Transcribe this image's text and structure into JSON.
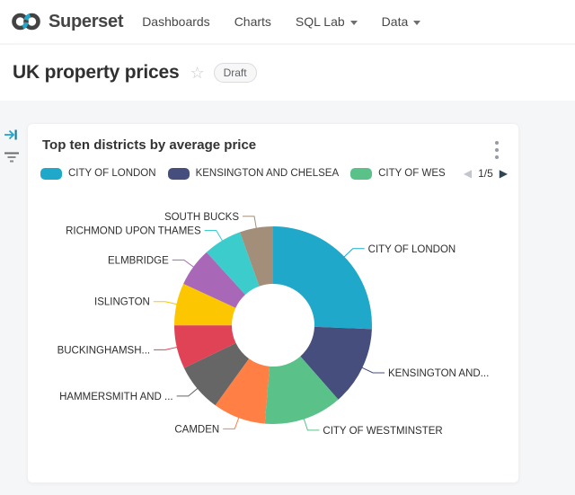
{
  "brand": {
    "name": "Superset",
    "logo_dark": "#434343",
    "logo_accent": "#20A7C9"
  },
  "nav": {
    "items": [
      {
        "label": "Dashboards",
        "has_caret": false
      },
      {
        "label": "Charts",
        "has_caret": false
      },
      {
        "label": "SQL Lab",
        "has_caret": true
      },
      {
        "label": "Data",
        "has_caret": true
      }
    ]
  },
  "header": {
    "title": "UK property prices",
    "favorite_icon": "star-outline",
    "status_badge": "Draft"
  },
  "filter_bar": {
    "expand_icon": "arrow-right-to-bar",
    "filter_icon": "filter-lines",
    "accent_color": "#20A7C9"
  },
  "card": {
    "title": "Top ten districts by average price",
    "menu_icon": "kebab-vertical"
  },
  "chart_data": {
    "type": "pie",
    "subtype": "donut",
    "title": "Top ten districts by average price",
    "legend_position": "top",
    "legend_visible_items": [
      "CITY OF LONDON",
      "KENSINGTON AND CHELSEA",
      "CITY OF WES"
    ],
    "legend_page": "1/5",
    "slices": [
      {
        "display_label": "CITY OF LONDON",
        "share_pct_est": 25.6,
        "color": "#1FA8C9"
      },
      {
        "display_label": "KENSINGTON AND...",
        "share_pct_est": 12.9,
        "color": "#454E7C"
      },
      {
        "display_label": "CITY OF WESTMINSTER",
        "share_pct_est": 12.8,
        "color": "#5AC189"
      },
      {
        "display_label": "CAMDEN",
        "share_pct_est": 8.6,
        "color": "#FF7F44"
      },
      {
        "display_label": "HAMMERSMITH AND ...",
        "share_pct_est": 7.9,
        "color": "#666666"
      },
      {
        "display_label": "BUCKINGHAMSH...",
        "share_pct_est": 7.1,
        "color": "#E04355"
      },
      {
        "display_label": "ISLINGTON",
        "share_pct_est": 6.9,
        "color": "#FCC700"
      },
      {
        "display_label": "ELMBRIDGE",
        "share_pct_est": 6.35,
        "color": "#A868B7"
      },
      {
        "display_label": "RICHMOND UPON THAMES",
        "share_pct_est": 6.3,
        "color": "#3CCCCB"
      },
      {
        "display_label": "SOUTH BUCKS",
        "share_pct_est": 5.45,
        "color": "#A38F79"
      }
    ]
  }
}
